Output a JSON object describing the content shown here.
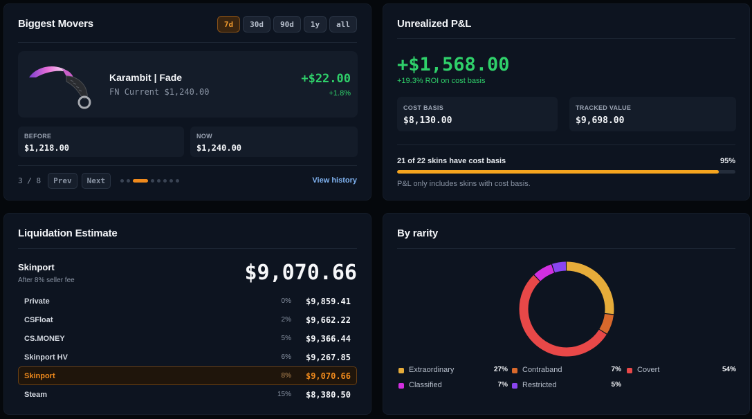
{
  "movers": {
    "title": "Biggest Movers",
    "ranges": [
      "7d",
      "30d",
      "90d",
      "1y",
      "all"
    ],
    "item": {
      "name": "Karambit | Fade",
      "condition": "FN",
      "current": "Current $1,240.00",
      "delta": "+$22.00",
      "delta_pct": "+1.8%"
    },
    "before_label": "BEFORE",
    "before_value": "$1,218.00",
    "now_label": "NOW",
    "now_value": "$1,240.00",
    "page": "3 / 8",
    "prev_label": "Prev",
    "next_label": "Next",
    "view_history": "View history"
  },
  "pnl": {
    "title": "Unrealized P&L",
    "amount": "+$1,568.00",
    "roi": "+19.3% ROI on cost basis",
    "cost_basis_label": "COST BASIS",
    "cost_basis_value": "$8,130.00",
    "tracked_label": "TRACKED VALUE",
    "tracked_value": "$9,698.00",
    "coverage_text": "21 of 22 skins have cost basis",
    "coverage_pct": "95%",
    "coverage_fraction": 0.95,
    "note": "P&L only includes skins with cost basis."
  },
  "liquidation": {
    "title": "Liquidation Estimate",
    "best_market": "Skinport",
    "fee_note": "After 8% seller fee",
    "total": "$9,070.66",
    "rows": [
      {
        "name": "Private",
        "fee": "0%",
        "amount": "$9,859.41"
      },
      {
        "name": "CSFloat",
        "fee": "2%",
        "amount": "$9,662.22"
      },
      {
        "name": "CS.MONEY",
        "fee": "5%",
        "amount": "$9,366.44"
      },
      {
        "name": "Skinport HV",
        "fee": "6%",
        "amount": "$9,267.85"
      },
      {
        "name": "Skinport",
        "fee": "8%",
        "amount": "$9,070.66"
      },
      {
        "name": "Steam",
        "fee": "15%",
        "amount": "$8,380.50"
      }
    ]
  },
  "rarity": {
    "title": "By rarity",
    "legend": [
      {
        "label": "Extraordinary",
        "pct": "27%",
        "value": 27,
        "color": "#e6ac3a"
      },
      {
        "label": "Contraband",
        "pct": "7%",
        "value": 7,
        "color": "#d9692c"
      },
      {
        "label": "Covert",
        "pct": "54%",
        "value": 54,
        "color": "#e84848"
      },
      {
        "label": "Classified",
        "pct": "7%",
        "value": 7,
        "color": "#d22fe0"
      },
      {
        "label": "Restricted",
        "pct": "5%",
        "value": 5,
        "color": "#8a45f0"
      }
    ]
  }
}
